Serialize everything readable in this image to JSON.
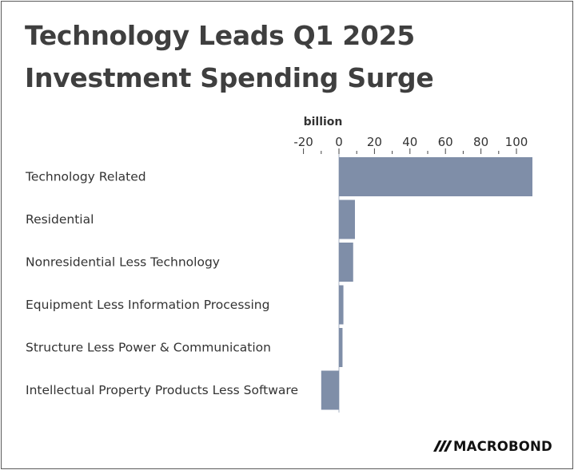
{
  "title_lines": [
    "Technology Leads Q1 2025",
    "Investment Spending Surge"
  ],
  "brand": "MACROBOND",
  "bar_color": "#7f8ea8",
  "chart_data": {
    "type": "bar",
    "orientation": "horizontal",
    "title": "Technology Leads Q1 2025 Investment Spending Surge",
    "unit": "billion",
    "categories": [
      "Technology Related",
      "Residential",
      "Nonresidential Less Technology",
      "Equipment Less Information Processing",
      "Structure Less Power & Communication",
      "Intellectual Property Products Less Software"
    ],
    "values": [
      109,
      9,
      8,
      2.5,
      2,
      -10
    ],
    "xlim": [
      -20,
      110
    ],
    "ticks": [
      -20,
      0,
      20,
      40,
      60,
      80,
      100
    ],
    "axis_position": "top",
    "grid": false,
    "legend": "none"
  }
}
